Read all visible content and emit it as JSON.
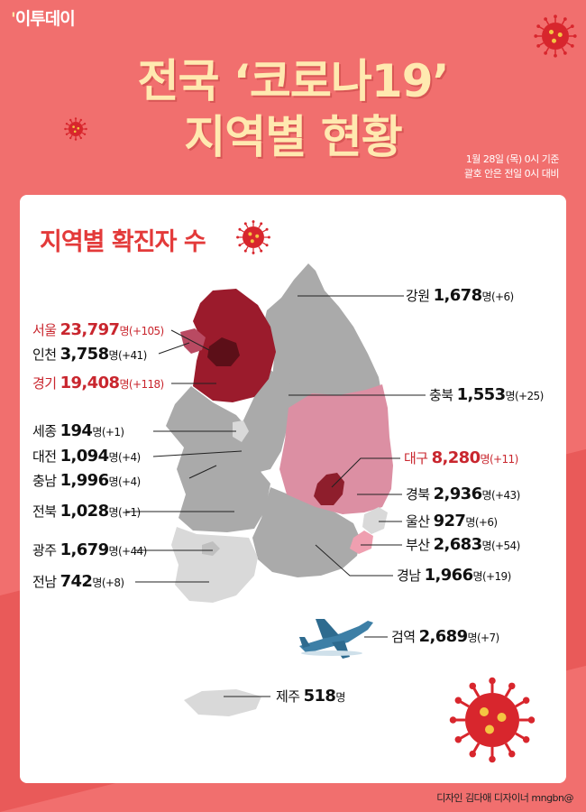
{
  "header": {
    "logo": "이투데이",
    "title_line1": "전국 ‘코로나19’",
    "title_line2": "지역별 현황",
    "basis_line1": "1월 28일 (목) 0시 기준",
    "basis_line2": "괄호 안은 전일 0시 대비"
  },
  "section_title": "지역별 확진자 수",
  "unit": "명",
  "regions": [
    {
      "key": "seoul",
      "name": "서울",
      "count": "23,797",
      "change": "(+105)",
      "highlight": true
    },
    {
      "key": "incheon",
      "name": "인천",
      "count": "3,758",
      "change": "(+41)",
      "highlight": false
    },
    {
      "key": "gyeonggi",
      "name": "경기",
      "count": "19,408",
      "change": "(+118)",
      "highlight": true
    },
    {
      "key": "sejong",
      "name": "세종",
      "count": "194",
      "change": "(+1)",
      "highlight": false
    },
    {
      "key": "daejeon",
      "name": "대전",
      "count": "1,094",
      "change": "(+4)",
      "highlight": false
    },
    {
      "key": "chungnam",
      "name": "충남",
      "count": "1,996",
      "change": "(+4)",
      "highlight": false
    },
    {
      "key": "jeonbuk",
      "name": "전북",
      "count": "1,028",
      "change": "(+1)",
      "highlight": false
    },
    {
      "key": "gwangju",
      "name": "광주",
      "count": "1,679",
      "change": "(+44)",
      "highlight": false
    },
    {
      "key": "jeonnam",
      "name": "전남",
      "count": "742",
      "change": "(+8)",
      "highlight": false
    },
    {
      "key": "gangwon",
      "name": "강원",
      "count": "1,678",
      "change": "(+6)",
      "highlight": false
    },
    {
      "key": "chungbuk",
      "name": "충북",
      "count": "1,553",
      "change": "(+25)",
      "highlight": false
    },
    {
      "key": "daegu",
      "name": "대구",
      "count": "8,280",
      "change": "(+11)",
      "highlight": true
    },
    {
      "key": "gyeongbuk",
      "name": "경북",
      "count": "2,936",
      "change": "(+43)",
      "highlight": false
    },
    {
      "key": "ulsan",
      "name": "울산",
      "count": "927",
      "change": "(+6)",
      "highlight": false
    },
    {
      "key": "busan",
      "name": "부산",
      "count": "2,683",
      "change": "(+54)",
      "highlight": false
    },
    {
      "key": "gyeongnam",
      "name": "경남",
      "count": "1,966",
      "change": "(+19)",
      "highlight": false
    },
    {
      "key": "quarantine",
      "name": "검역",
      "count": "2,689",
      "change": "(+7)",
      "highlight": false
    },
    {
      "key": "jeju",
      "name": "제주",
      "count": "518",
      "change": "",
      "highlight": false
    }
  ],
  "credit": "디자인 김다애 디자이너 mngbn@",
  "colors": {
    "background": "#f16f6e",
    "title": "#ffe9b0",
    "highlight_text": "#c9262e",
    "seoul": "#5c0f18",
    "incheon": "#b94a62",
    "gyeonggi": "#9b1b2c",
    "daegu": "#8e1e2c",
    "gyeongbuk": "#dc8fa3",
    "busan": "#ef9fb0",
    "gray": "#aaaaaa",
    "light_gray": "#d9d9d9",
    "virus": "#d8262d"
  }
}
